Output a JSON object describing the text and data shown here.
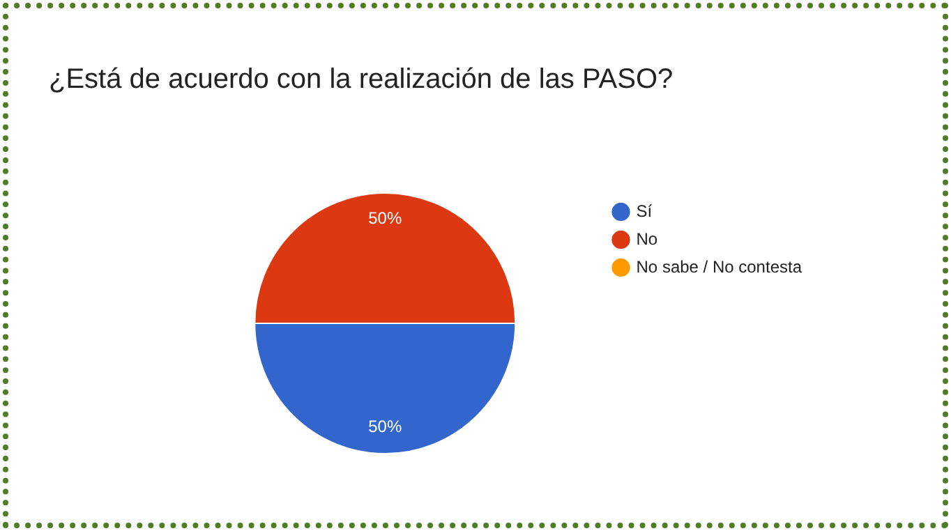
{
  "chart_data": {
    "type": "pie",
    "title": "¿Está de acuerdo con la realización de las PASO?",
    "categories": [
      "Sí",
      "No",
      "No sabe / No contesta"
    ],
    "values": [
      50,
      50,
      0
    ],
    "colors": [
      "#3366cc",
      "#dc3912",
      "#ff9900"
    ],
    "value_labels": [
      "50%",
      "50%",
      null
    ],
    "legend": "right"
  }
}
